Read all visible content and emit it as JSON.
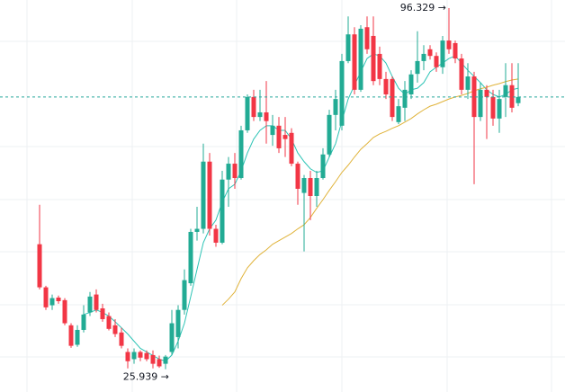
{
  "chart_data": {
    "type": "candlestick",
    "ylim": [
      21.5,
      97.9
    ],
    "up_color": "#22ab94",
    "down_color": "#f23645",
    "open": [
      50.3,
      41.9,
      38.4,
      39.9,
      39.4,
      34.5,
      30.7,
      33.6,
      37.0,
      40.5,
      37.8,
      36.3,
      34.5,
      33.1,
      29.3,
      27.9,
      29.3,
      29.1,
      28.7,
      27.9,
      27.0,
      29.3,
      32.2,
      37.5,
      42.7,
      52.7,
      53.3,
      66.4,
      53.3,
      50.6,
      62.9,
      66.0,
      63.2,
      72.5,
      79.0,
      75.1,
      76.0,
      71.6,
      73.4,
      71.6,
      72.0,
      66.0,
      60.3,
      63.2,
      59.7,
      63.2,
      67.8,
      75.5,
      73.4,
      86.0,
      91.2,
      80.4,
      92.6,
      90.9,
      87.4,
      82.5,
      82.5,
      74.1,
      76.9,
      79.5,
      83.5,
      86.0,
      88.3,
      87.0,
      84.8,
      90.0,
      89.5,
      86.5,
      80.4,
      83.0,
      75.1,
      80.4,
      79.0,
      74.8,
      79.0,
      81.3,
      77.8
    ],
    "high": [
      58.0,
      42.2,
      40.5,
      40.3,
      39.8,
      34.9,
      34.5,
      38.4,
      41.0,
      41.5,
      38.7,
      37.0,
      35.7,
      34.0,
      30.0,
      30.0,
      29.6,
      29.6,
      29.6,
      28.6,
      28.7,
      37.5,
      38.4,
      45.4,
      53.3,
      57.6,
      69.9,
      68.1,
      54.1,
      64.6,
      67.3,
      68.1,
      73.4,
      79.5,
      80.4,
      80.4,
      82.1,
      75.5,
      75.1,
      75.1,
      72.9,
      66.4,
      63.8,
      64.6,
      64.6,
      69.0,
      76.5,
      80.4,
      87.4,
      94.7,
      92.6,
      93.0,
      94.7,
      94.7,
      88.8,
      83.9,
      83.0,
      78.6,
      82.1,
      84.2,
      91.8,
      89.1,
      89.1,
      87.7,
      90.9,
      96.329,
      90.0,
      87.4,
      85.6,
      83.9,
      81.8,
      81.3,
      80.4,
      80.4,
      85.6,
      85.6,
      85.6
    ],
    "low": [
      41.5,
      37.5,
      37.5,
      38.7,
      34.5,
      30.1,
      30.3,
      33.1,
      36.3,
      37.0,
      35.2,
      33.5,
      32.2,
      30.0,
      26.1,
      27.0,
      27.5,
      27.5,
      26.1,
      26.2,
      25.939,
      28.7,
      30.0,
      36.6,
      42.2,
      51.0,
      52.4,
      52.0,
      49.8,
      50.3,
      57.6,
      61.1,
      62.9,
      72.0,
      74.3,
      74.3,
      69.9,
      69.5,
      68.1,
      67.3,
      65.5,
      58.0,
      48.9,
      55.0,
      57.6,
      62.9,
      67.3,
      72.5,
      72.5,
      85.6,
      79.5,
      80.0,
      87.4,
      81.3,
      81.3,
      78.6,
      74.3,
      73.7,
      74.3,
      78.6,
      81.8,
      84.2,
      86.3,
      83.9,
      83.5,
      87.4,
      85.6,
      79.5,
      78.6,
      62.0,
      74.3,
      70.8,
      73.4,
      72.0,
      75.1,
      76.0,
      77.2
    ],
    "close": [
      41.9,
      38.0,
      39.8,
      39.2,
      34.9,
      30.5,
      33.6,
      36.6,
      40.1,
      37.5,
      35.7,
      33.8,
      32.8,
      30.5,
      27.5,
      29.3,
      28.2,
      27.9,
      27.0,
      26.5,
      28.4,
      34.9,
      37.5,
      43.3,
      52.7,
      53.3,
      66.4,
      53.3,
      50.6,
      62.9,
      66.0,
      63.2,
      72.5,
      79.0,
      75.1,
      76.0,
      74.3,
      73.4,
      69.0,
      70.8,
      66.0,
      61.1,
      63.2,
      59.7,
      63.2,
      67.8,
      75.5,
      78.6,
      86.0,
      91.2,
      80.4,
      92.3,
      88.3,
      82.1,
      82.5,
      79.5,
      75.1,
      77.2,
      80.4,
      83.4,
      86.0,
      87.4,
      87.0,
      84.8,
      90.0,
      88.3,
      86.5,
      80.4,
      83.0,
      75.1,
      80.4,
      79.0,
      74.8,
      78.6,
      81.3,
      76.9,
      79.0
    ],
    "high_labels": [
      null,
      null,
      null,
      null,
      null,
      null,
      null,
      null,
      null,
      null,
      null,
      null,
      null,
      null,
      null,
      null,
      null,
      null,
      null,
      null,
      null,
      null,
      null,
      null,
      null,
      null,
      null,
      null,
      null,
      null,
      null,
      null,
      null,
      null,
      null,
      null,
      null,
      null,
      null,
      null,
      null,
      null,
      null,
      null,
      null,
      null,
      null,
      null,
      null,
      null,
      null,
      null,
      null,
      null,
      null,
      null,
      null,
      null,
      null,
      null,
      null,
      null,
      null,
      null,
      null,
      "96.329 →",
      null,
      null,
      null,
      null,
      null,
      null,
      null,
      null,
      null,
      null,
      null
    ],
    "low_labels": [
      null,
      null,
      null,
      null,
      null,
      null,
      null,
      null,
      null,
      null,
      null,
      null,
      null,
      null,
      null,
      null,
      null,
      null,
      null,
      null,
      "25.939 →",
      null,
      null,
      null,
      null,
      null,
      null,
      null,
      null,
      null,
      null,
      null,
      null,
      null,
      null,
      null,
      null,
      null,
      null,
      null,
      null,
      null,
      null,
      null,
      null,
      null,
      null,
      null,
      null,
      null,
      null,
      null,
      null,
      null,
      null,
      null,
      null,
      null,
      null,
      null,
      null,
      null,
      null,
      null,
      null,
      null,
      null,
      null,
      null,
      null,
      null,
      null,
      null,
      null,
      null,
      null,
      null
    ],
    "last_price_color": "#26a69a",
    "overlays": [
      {
        "color": "#2ec4b6",
        "values": [
          null,
          null,
          null,
          null,
          null,
          null,
          null,
          36.6,
          37.0,
          37.5,
          37.0,
          36.3,
          35.2,
          34.0,
          32.8,
          31.4,
          30.0,
          29.3,
          28.6,
          27.9,
          27.5,
          28.7,
          31.4,
          34.9,
          40.1,
          45.4,
          50.6,
          53.3,
          55.0,
          58.5,
          61.1,
          62.0,
          64.6,
          68.1,
          70.8,
          72.5,
          73.4,
          73.4,
          72.5,
          72.5,
          70.8,
          68.1,
          66.4,
          65.0,
          64.3,
          64.6,
          67.3,
          69.9,
          74.3,
          78.6,
          81.3,
          83.9,
          86.5,
          87.4,
          87.0,
          85.6,
          83.0,
          80.7,
          79.5,
          80.4,
          80.7,
          81.8,
          83.9,
          84.8,
          85.6,
          86.5,
          87.0,
          85.6,
          84.2,
          83.0,
          81.8,
          80.4,
          79.5,
          79.0,
          79.5,
          80.4,
          80.7
        ]
      },
      {
        "color": "#e0b33a",
        "values": [
          null,
          null,
          null,
          null,
          null,
          null,
          null,
          null,
          null,
          null,
          null,
          null,
          null,
          null,
          null,
          null,
          null,
          null,
          null,
          null,
          null,
          null,
          null,
          null,
          null,
          null,
          null,
          null,
          null,
          38.4,
          39.6,
          41.0,
          43.6,
          45.7,
          47.1,
          48.3,
          49.2,
          50.3,
          51.0,
          51.7,
          52.4,
          53.3,
          54.1,
          55.5,
          57.3,
          59.0,
          60.8,
          62.5,
          64.3,
          65.7,
          67.3,
          68.8,
          69.9,
          71.1,
          71.8,
          72.3,
          72.9,
          73.4,
          74.1,
          74.8,
          75.7,
          76.5,
          77.2,
          77.6,
          78.1,
          78.6,
          79.0,
          79.3,
          79.7,
          80.2,
          80.6,
          80.9,
          81.3,
          81.6,
          82.0,
          82.3,
          82.5
        ]
      }
    ]
  }
}
